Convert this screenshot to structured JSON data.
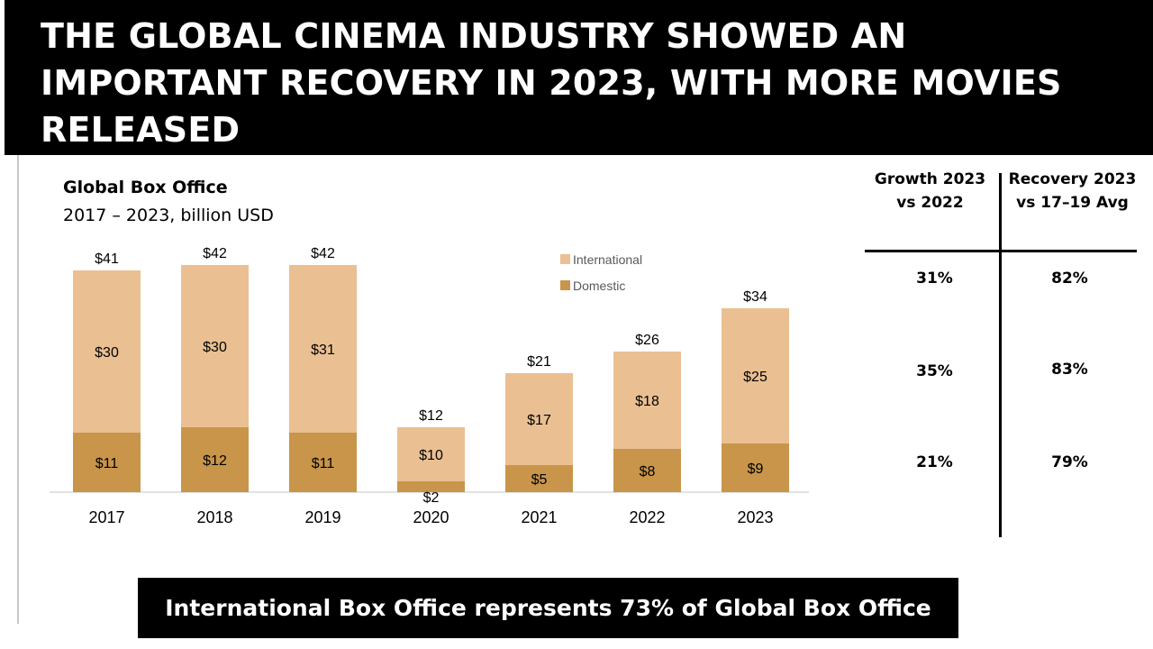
{
  "slide": {
    "title": "THE GLOBAL CINEMA INDUSTRY SHOWED AN IMPORTANT RECOVERY IN 2023, WITH MORE MOVIES RELEASED",
    "footer": "International Box Office represents 73% of Global Box Office"
  },
  "table": {
    "headers": [
      "Growth 2023 vs 2022",
      "Recovery 2023 vs 17–19 Avg"
    ],
    "rows": [
      [
        "31%",
        "82%"
      ],
      [
        "35%",
        "83%"
      ],
      [
        "21%",
        "79%"
      ]
    ]
  },
  "colors": {
    "international": "#EAC092",
    "domestic": "#C8954A",
    "title_band": "#000000",
    "axis": "#d9d9d9"
  },
  "chart_data": {
    "type": "bar",
    "stacked": true,
    "title": "Global Box Office",
    "subtitle": "2017 – 2023, billion USD",
    "categories": [
      "2017",
      "2018",
      "2019",
      "2020",
      "2021",
      "2022",
      "2023"
    ],
    "series": [
      {
        "name": "Domestic",
        "values": [
          11,
          12,
          11,
          2,
          5,
          8,
          9
        ],
        "labels": [
          "$11",
          "$12",
          "$11",
          "$2",
          "$5",
          "$8",
          "$9"
        ]
      },
      {
        "name": "International",
        "values": [
          30,
          30,
          31,
          10,
          17,
          18,
          25
        ],
        "labels": [
          "$30",
          "$30",
          "$31",
          "$10",
          "$17",
          "$18",
          "$25"
        ]
      }
    ],
    "totals": [
      41,
      42,
      42,
      12,
      21,
      26,
      34
    ],
    "total_labels": [
      "$41",
      "$42",
      "$42",
      "$12",
      "$21",
      "$26",
      "$34"
    ],
    "ylim": [
      0,
      42
    ],
    "grid": false,
    "legend": "top-right",
    "legend_order": [
      "International",
      "Domestic"
    ]
  }
}
